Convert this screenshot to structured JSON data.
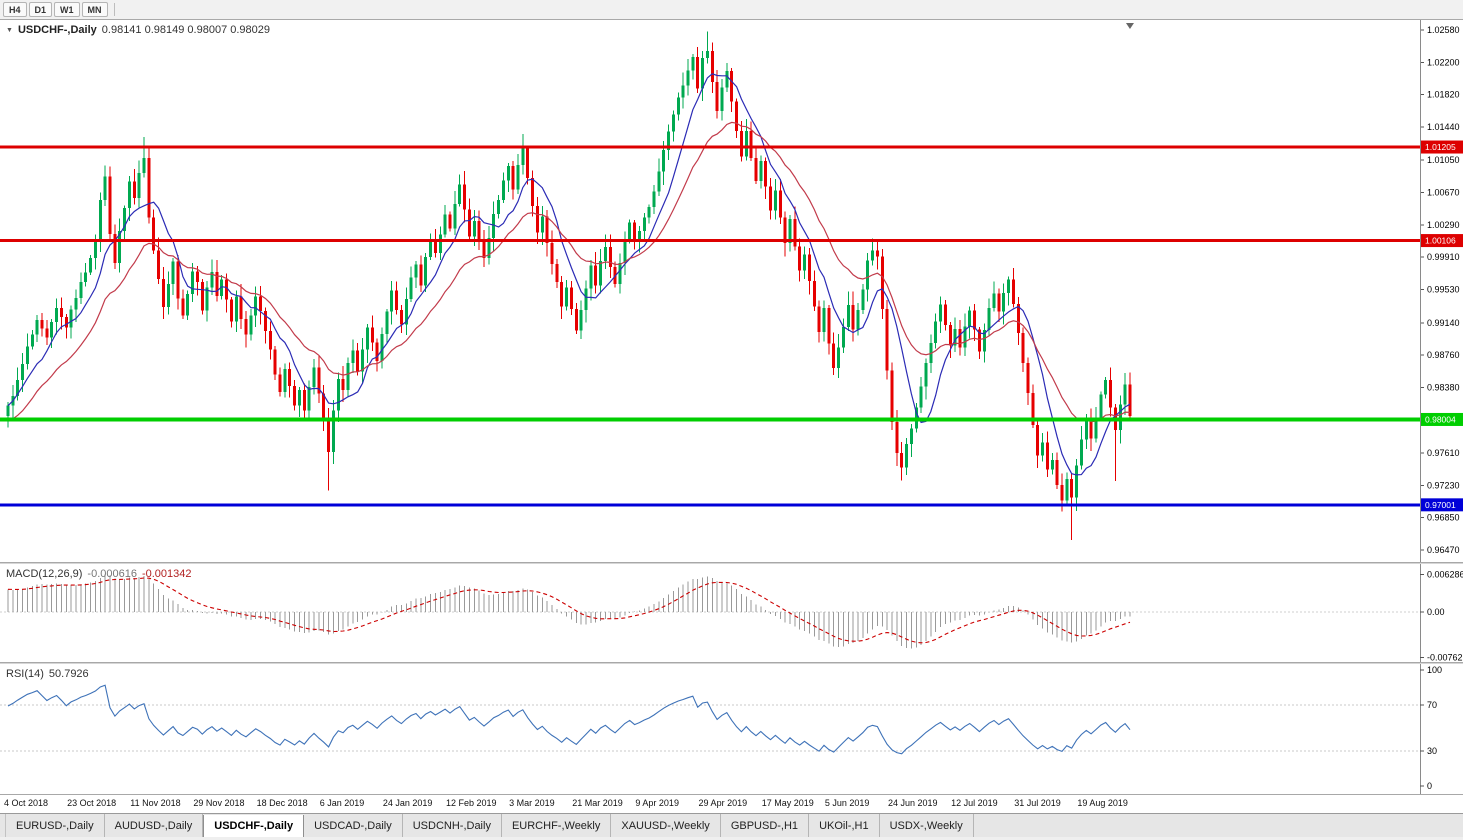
{
  "toolbar": {
    "timeframes": [
      "H4",
      "D1",
      "W1",
      "MN"
    ]
  },
  "chart": {
    "title": {
      "symbol": "USDCHF-,Daily",
      "ohlc": "0.98141 0.98149 0.98007 0.98029"
    }
  },
  "chart_data": {
    "type": "candlestick",
    "symbol": "USDCHF",
    "timeframe": "Daily",
    "current_bar": {
      "open": "0.98141",
      "high": "0.98149",
      "low": "0.98007",
      "close": "0.98029"
    },
    "candle_count": 232,
    "price_axis_labels": [
      "1.02580",
      "1.02200",
      "1.01820",
      "1.01440",
      "1.01050",
      "1.00670",
      "1.00290",
      "0.99910",
      "0.99530",
      "0.99140",
      "0.98760",
      "0.98380",
      "0.98000",
      "0.97610",
      "0.97230",
      "0.96850",
      "0.96470"
    ],
    "date_ticks": [
      [
        "4 Oct 2018",
        0
      ],
      [
        "23 Oct 2018",
        13
      ],
      [
        "11 Nov 2018",
        26
      ],
      [
        "29 Nov 2018",
        39
      ],
      [
        "18 Dec 2018",
        52
      ],
      [
        "6 Jan 2019",
        65
      ],
      [
        "24 Jan 2019",
        78
      ],
      [
        "12 Feb 2019",
        91
      ],
      [
        "3 Mar 2019",
        104
      ],
      [
        "21 Mar 2019",
        117
      ],
      [
        "9 Apr 2019",
        130
      ],
      [
        "29 Apr 2019",
        143
      ],
      [
        "17 May 2019",
        156
      ],
      [
        "5 Jun 2019",
        169
      ],
      [
        "24 Jun 2019",
        182
      ],
      [
        "12 Jul 2019",
        195
      ],
      [
        "31 Jul 2019",
        208
      ],
      [
        "19 Aug 2019",
        221
      ]
    ],
    "levels": [
      {
        "price": 1.01205,
        "label": "1.01205",
        "color": "#DD0000",
        "thickness": 3
      },
      {
        "price": 1.00106,
        "label": "1.00106",
        "color": "#DD0000",
        "thickness": 3
      },
      {
        "price": 0.98004,
        "label": "0.98004",
        "color": "#00CE00",
        "thickness": 4
      },
      {
        "price": 0.97001,
        "label": "0.97001",
        "color": "#0000D8",
        "thickness": 3
      }
    ],
    "overlays": {
      "ma_fast_period": 8,
      "ma_slow_period": 21
    },
    "close_anchors": [
      [
        0,
        0.9815
      ],
      [
        2,
        0.9845
      ],
      [
        4,
        0.9885
      ],
      [
        6,
        0.9915
      ],
      [
        8,
        0.9895
      ],
      [
        10,
        0.993
      ],
      [
        12,
        0.991
      ],
      [
        14,
        0.9945
      ],
      [
        16,
        0.9975
      ],
      [
        18,
        1.001
      ],
      [
        19,
        1.006
      ],
      [
        20,
        1.0085
      ],
      [
        21,
        1.002
      ],
      [
        22,
        0.9985
      ],
      [
        23,
        1.002
      ],
      [
        24,
        1.005
      ],
      [
        25,
        1.008
      ],
      [
        26,
        1.006
      ],
      [
        27,
        1.009
      ],
      [
        28,
        1.011
      ],
      [
        29,
        1.004
      ],
      [
        30,
        1.0
      ],
      [
        31,
        0.9965
      ],
      [
        32,
        0.9935
      ],
      [
        33,
        0.996
      ],
      [
        34,
        0.9985
      ],
      [
        35,
        0.9945
      ],
      [
        36,
        0.992
      ],
      [
        37,
        0.995
      ],
      [
        38,
        0.9975
      ],
      [
        39,
        0.996
      ],
      [
        40,
        0.993
      ],
      [
        41,
        0.9955
      ],
      [
        42,
        0.9975
      ],
      [
        43,
        0.9945
      ],
      [
        44,
        0.9965
      ],
      [
        45,
        0.994
      ],
      [
        46,
        0.9915
      ],
      [
        47,
        0.9945
      ],
      [
        48,
        0.992
      ],
      [
        49,
        0.99
      ],
      [
        50,
        0.9925
      ],
      [
        51,
        0.9945
      ],
      [
        52,
        0.993
      ],
      [
        53,
        0.9905
      ],
      [
        54,
        0.988
      ],
      [
        55,
        0.9855
      ],
      [
        56,
        0.9835
      ],
      [
        57,
        0.986
      ],
      [
        58,
        0.984
      ],
      [
        59,
        0.9815
      ],
      [
        60,
        0.9835
      ],
      [
        61,
        0.981
      ],
      [
        62,
        0.984
      ],
      [
        63,
        0.986
      ],
      [
        64,
        0.983
      ],
      [
        65,
        0.98
      ],
      [
        66,
        0.976
      ],
      [
        67,
        0.981
      ],
      [
        68,
        0.985
      ],
      [
        69,
        0.9835
      ],
      [
        70,
        0.9865
      ],
      [
        71,
        0.988
      ],
      [
        72,
        0.9855
      ],
      [
        73,
        0.9885
      ],
      [
        74,
        0.991
      ],
      [
        75,
        0.989
      ],
      [
        76,
        0.987
      ],
      [
        77,
        0.99
      ],
      [
        78,
        0.9925
      ],
      [
        79,
        0.995
      ],
      [
        80,
        0.993
      ],
      [
        81,
        0.991
      ],
      [
        82,
        0.994
      ],
      [
        83,
        0.9965
      ],
      [
        84,
        0.9985
      ],
      [
        85,
        0.996
      ],
      [
        86,
        0.999
      ],
      [
        87,
        1.001
      ],
      [
        88,
        0.9995
      ],
      [
        89,
        1.002
      ],
      [
        90,
        1.004
      ],
      [
        91,
        1.0025
      ],
      [
        92,
        1.0055
      ],
      [
        93,
        1.0075
      ],
      [
        94,
        1.0045
      ],
      [
        95,
        1.0015
      ],
      [
        96,
        1.0035
      ],
      [
        97,
        1.001
      ],
      [
        98,
        0.999
      ],
      [
        99,
        1.0015
      ],
      [
        100,
        1.004
      ],
      [
        101,
        1.006
      ],
      [
        102,
        1.008
      ],
      [
        103,
        1.01
      ],
      [
        104,
        1.007
      ],
      [
        105,
        1.01
      ],
      [
        106,
        1.012
      ],
      [
        107,
        1.0085
      ],
      [
        108,
        1.005
      ],
      [
        109,
        1.002
      ],
      [
        110,
        1.004
      ],
      [
        111,
        1.001
      ],
      [
        112,
        0.9985
      ],
      [
        113,
        0.996
      ],
      [
        114,
        0.9935
      ],
      [
        115,
        0.9955
      ],
      [
        116,
        0.993
      ],
      [
        117,
        0.9905
      ],
      [
        118,
        0.993
      ],
      [
        119,
        0.9955
      ],
      [
        120,
        0.998
      ],
      [
        121,
        0.996
      ],
      [
        122,
        0.9985
      ],
      [
        123,
        1.0005
      ],
      [
        124,
        0.998
      ],
      [
        125,
        0.996
      ],
      [
        126,
        0.9985
      ],
      [
        127,
        1.001
      ],
      [
        128,
        1.003
      ],
      [
        129,
        1.001
      ],
      [
        130,
        1.002
      ],
      [
        131,
        1.0035
      ],
      [
        132,
        1.005
      ],
      [
        133,
        1.007
      ],
      [
        134,
        1.009
      ],
      [
        135,
        1.0115
      ],
      [
        136,
        1.014
      ],
      [
        137,
        1.016
      ],
      [
        138,
        1.018
      ],
      [
        139,
        1.0195
      ],
      [
        140,
        1.021
      ],
      [
        141,
        1.0225
      ],
      [
        142,
        1.019
      ],
      [
        143,
        1.0225
      ],
      [
        144,
        1.0235
      ],
      [
        145,
        1.0195
      ],
      [
        146,
        1.0165
      ],
      [
        147,
        1.019
      ],
      [
        148,
        1.021
      ],
      [
        149,
        1.0175
      ],
      [
        150,
        1.014
      ],
      [
        151,
        1.011
      ],
      [
        152,
        1.014
      ],
      [
        153,
        1.011
      ],
      [
        154,
        1.008
      ],
      [
        155,
        1.0105
      ],
      [
        156,
        1.0075
      ],
      [
        157,
        1.0045
      ],
      [
        158,
        1.007
      ],
      [
        159,
        1.004
      ],
      [
        160,
        1.001
      ],
      [
        161,
        1.0035
      ],
      [
        162,
        1.0005
      ],
      [
        163,
        0.9975
      ],
      [
        164,
        0.9995
      ],
      [
        165,
        0.9965
      ],
      [
        166,
        0.9935
      ],
      [
        167,
        0.9905
      ],
      [
        168,
        0.993
      ],
      [
        169,
        0.989
      ],
      [
        170,
        0.986
      ],
      [
        171,
        0.9885
      ],
      [
        172,
        0.991
      ],
      [
        173,
        0.9935
      ],
      [
        174,
        0.9905
      ],
      [
        175,
        0.993
      ],
      [
        176,
        0.9955
      ],
      [
        177,
        0.9985
      ],
      [
        178,
        1.0
      ],
      [
        179,
        0.999
      ],
      [
        180,
        0.993
      ],
      [
        181,
        0.986
      ],
      [
        182,
        0.98
      ],
      [
        183,
        0.976
      ],
      [
        184,
        0.9745
      ],
      [
        185,
        0.977
      ],
      [
        186,
        0.979
      ],
      [
        187,
        0.9815
      ],
      [
        188,
        0.984
      ],
      [
        189,
        0.9865
      ],
      [
        190,
        0.989
      ],
      [
        191,
        0.9915
      ],
      [
        192,
        0.9935
      ],
      [
        193,
        0.991
      ],
      [
        194,
        0.9885
      ],
      [
        195,
        0.9905
      ],
      [
        196,
        0.9885
      ],
      [
        197,
        0.991
      ],
      [
        198,
        0.993
      ],
      [
        199,
        0.9905
      ],
      [
        200,
        0.988
      ],
      [
        201,
        0.9905
      ],
      [
        202,
        0.993
      ],
      [
        203,
        0.995
      ],
      [
        204,
        0.9925
      ],
      [
        205,
        0.995
      ],
      [
        206,
        0.9965
      ],
      [
        207,
        0.9935
      ],
      [
        208,
        0.99
      ],
      [
        209,
        0.9865
      ],
      [
        210,
        0.983
      ],
      [
        211,
        0.9795
      ],
      [
        212,
        0.976
      ],
      [
        213,
        0.9775
      ],
      [
        214,
        0.974
      ],
      [
        215,
        0.9755
      ],
      [
        216,
        0.9725
      ],
      [
        217,
        0.9705
      ],
      [
        218,
        0.973
      ],
      [
        219,
        0.971
      ],
      [
        220,
        0.9745
      ],
      [
        221,
        0.9775
      ],
      [
        222,
        0.98
      ],
      [
        223,
        0.978
      ],
      [
        224,
        0.9805
      ],
      [
        225,
        0.983
      ],
      [
        226,
        0.9845
      ],
      [
        227,
        0.9815
      ],
      [
        228,
        0.979
      ],
      [
        229,
        0.982
      ],
      [
        230,
        0.984
      ],
      [
        231,
        0.9803
      ]
    ],
    "wick_overrides": {
      "28": {
        "high": 1.0132
      },
      "66": {
        "low": 0.9717
      },
      "106": {
        "high": 1.0136
      },
      "144": {
        "high": 1.0256
      },
      "178": {
        "high": 1.0013
      },
      "184": {
        "low": 0.9741
      },
      "219": {
        "low": 0.9659
      },
      "228": {
        "low": 0.9728
      }
    },
    "indicators": {
      "macd": {
        "name": "MACD(12,26,9)",
        "value_main": "-0.000616",
        "value_signal": "-0.001342",
        "fast": 12,
        "slow": 26,
        "signal": 9,
        "scale_labels": [
          "0.006286",
          "0.00",
          "-0.00762"
        ]
      },
      "rsi": {
        "name": "RSI(14)",
        "value": "50.7926",
        "period": 14,
        "levels": [
          70,
          30
        ],
        "scale_labels": [
          "100",
          "70",
          "30",
          "0"
        ]
      }
    }
  },
  "tabs": {
    "active_index": 2,
    "items": [
      "EURUSD-,Daily",
      "AUDUSD-,Daily",
      "USDCHF-,Daily",
      "USDCAD-,Daily",
      "USDCNH-,Daily",
      "EURCHF-,Weekly",
      "XAUUSD-,Weekly",
      "GBPUSD-,H1",
      "UKOil-,H1",
      "USDX-,Weekly"
    ]
  },
  "colors": {
    "candle_up": "#00A950",
    "candle_down": "#E60000",
    "ma_fast": "#2B2BB5",
    "ma_slow": "#C23B4B",
    "macd_hist": "#9A9A9A",
    "macd_signal": "#CC0000",
    "rsi_line": "#3E72B8",
    "axis_text": "#000000",
    "scale_line": "#8A8A8A"
  }
}
